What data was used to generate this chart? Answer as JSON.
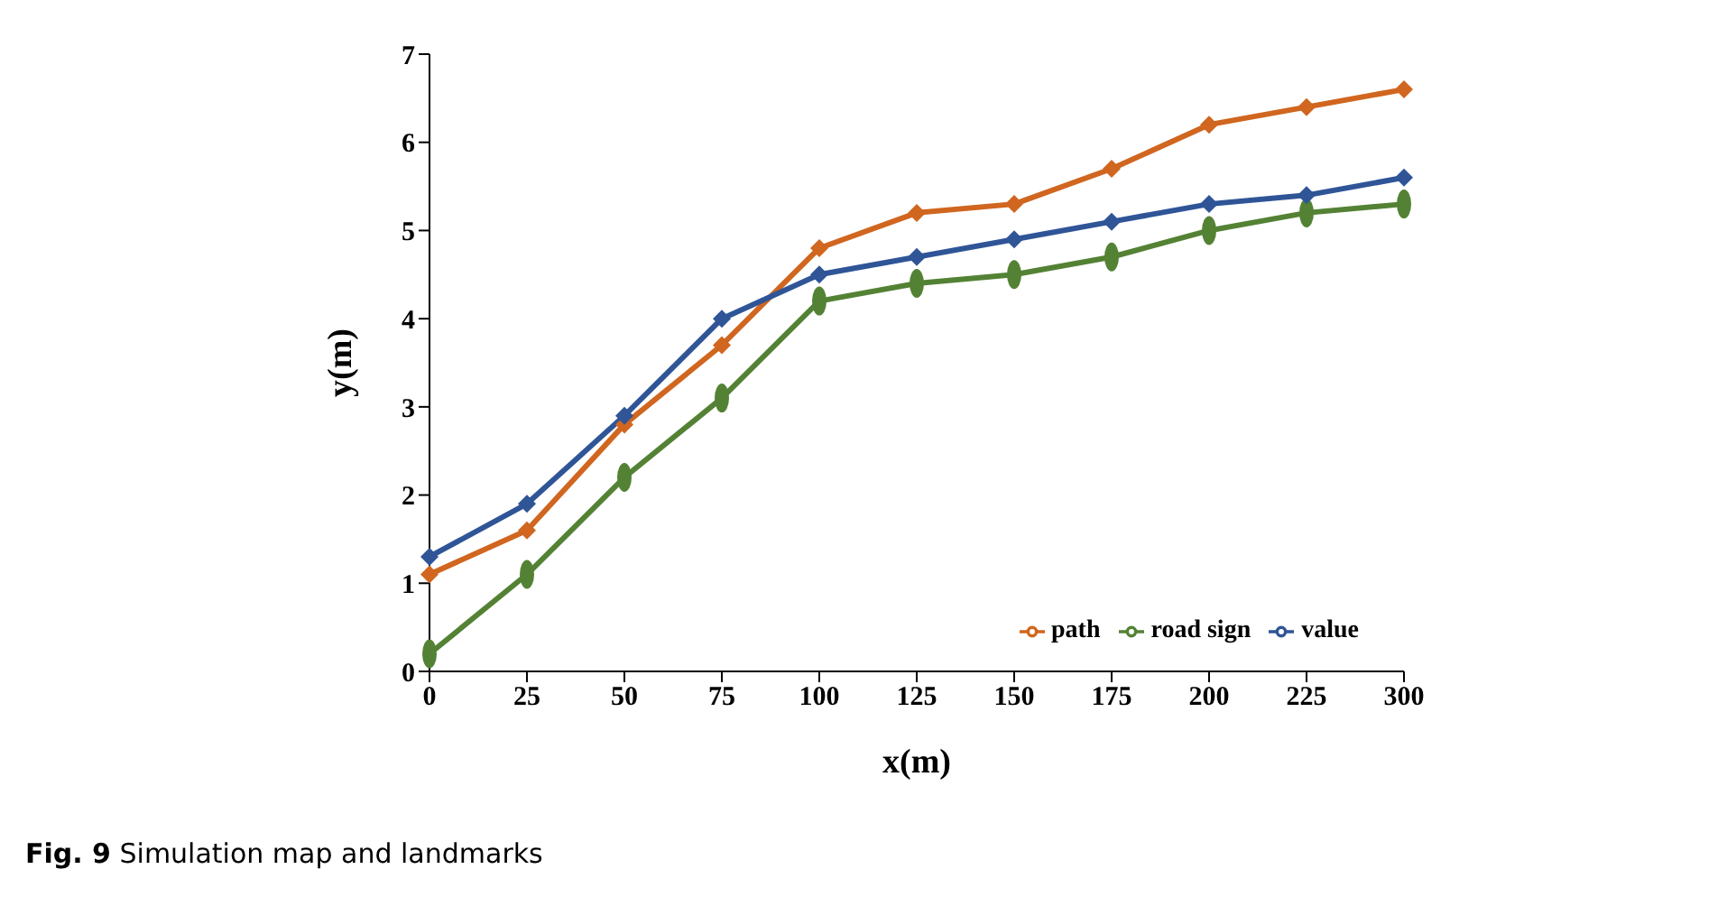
{
  "chart_data": {
    "type": "line",
    "xlabel": "x(m)",
    "ylabel": "y(m)",
    "categories": [
      "0",
      "25",
      "50",
      "75",
      "100",
      "125",
      "150",
      "175",
      "200",
      "225",
      "300"
    ],
    "series": [
      {
        "name": "path",
        "color": "#d0661f",
        "marker": "diamond",
        "values": [
          1.1,
          1.6,
          2.8,
          3.7,
          4.8,
          5.2,
          5.3,
          5.7,
          6.2,
          6.4,
          6.6
        ]
      },
      {
        "name": "road sign",
        "color": "#548235",
        "marker": "circle",
        "values": [
          0.2,
          1.1,
          2.2,
          3.1,
          4.2,
          4.4,
          4.5,
          4.7,
          5.0,
          5.2,
          5.3
        ]
      },
      {
        "name": "value",
        "color": "#2f5597",
        "marker": "diamond",
        "values": [
          1.3,
          1.9,
          2.9,
          4.0,
          4.5,
          4.7,
          4.9,
          5.1,
          5.3,
          5.4,
          5.6
        ]
      }
    ],
    "ylim": [
      0,
      7
    ],
    "yticks": [
      0,
      1,
      2,
      3,
      4,
      5,
      6,
      7
    ],
    "grid": false,
    "legend": "bottom right",
    "annotations": [
      "Fig. 9 Simulation map and landmarks"
    ]
  }
}
